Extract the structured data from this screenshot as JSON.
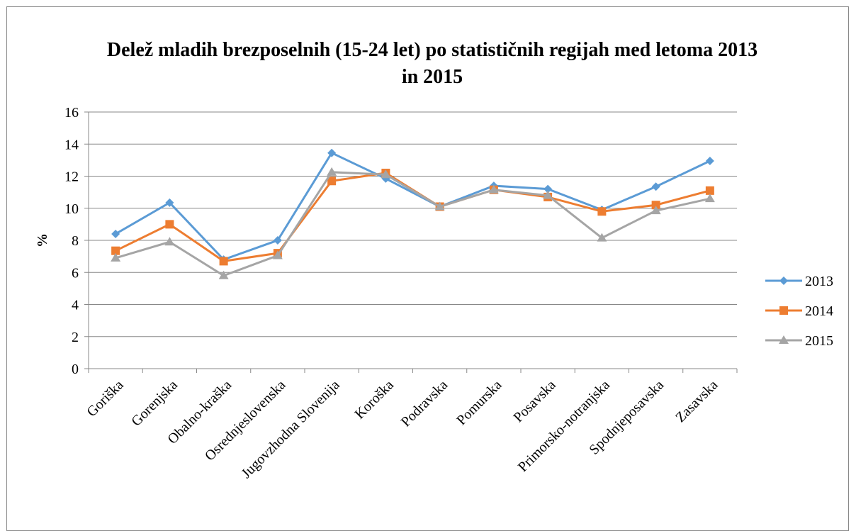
{
  "chart_data": {
    "type": "line",
    "title": "Delež mladih brezposelnih (15-24 let) po statističnih regijah med letoma 2013 in 2015",
    "y_label": "%",
    "categories": [
      "Goriška",
      "Gorenjska",
      "Obalno-kraška",
      "Osrednjeslovenska",
      "Jugovzhodna Slovenija",
      "Koroška",
      "Podravska",
      "Pomurska",
      "Posavska",
      "Primorsko-notranjska",
      "Spodnjeposavska",
      "Zasavska"
    ],
    "series": [
      {
        "name": "2013",
        "color": "#5b9bd5",
        "marker": "diamond",
        "values": [
          8.4,
          10.35,
          6.8,
          8.0,
          13.45,
          11.85,
          10.1,
          11.4,
          11.2,
          9.9,
          11.35,
          12.95
        ]
      },
      {
        "name": "2014",
        "color": "#ed7d31",
        "marker": "square",
        "values": [
          7.35,
          9.0,
          6.7,
          7.2,
          11.7,
          12.2,
          10.1,
          11.15,
          10.7,
          9.8,
          10.2,
          11.1
        ]
      },
      {
        "name": "2015",
        "color": "#a5a5a5",
        "marker": "triangle",
        "values": [
          6.9,
          7.9,
          5.8,
          7.05,
          12.25,
          12.1,
          10.1,
          11.15,
          10.8,
          8.15,
          9.85,
          10.6
        ]
      }
    ],
    "ylim": [
      0,
      16
    ],
    "yticks": [
      0,
      2,
      4,
      6,
      8,
      10,
      12,
      14,
      16
    ],
    "grid": true,
    "legend": "right"
  }
}
